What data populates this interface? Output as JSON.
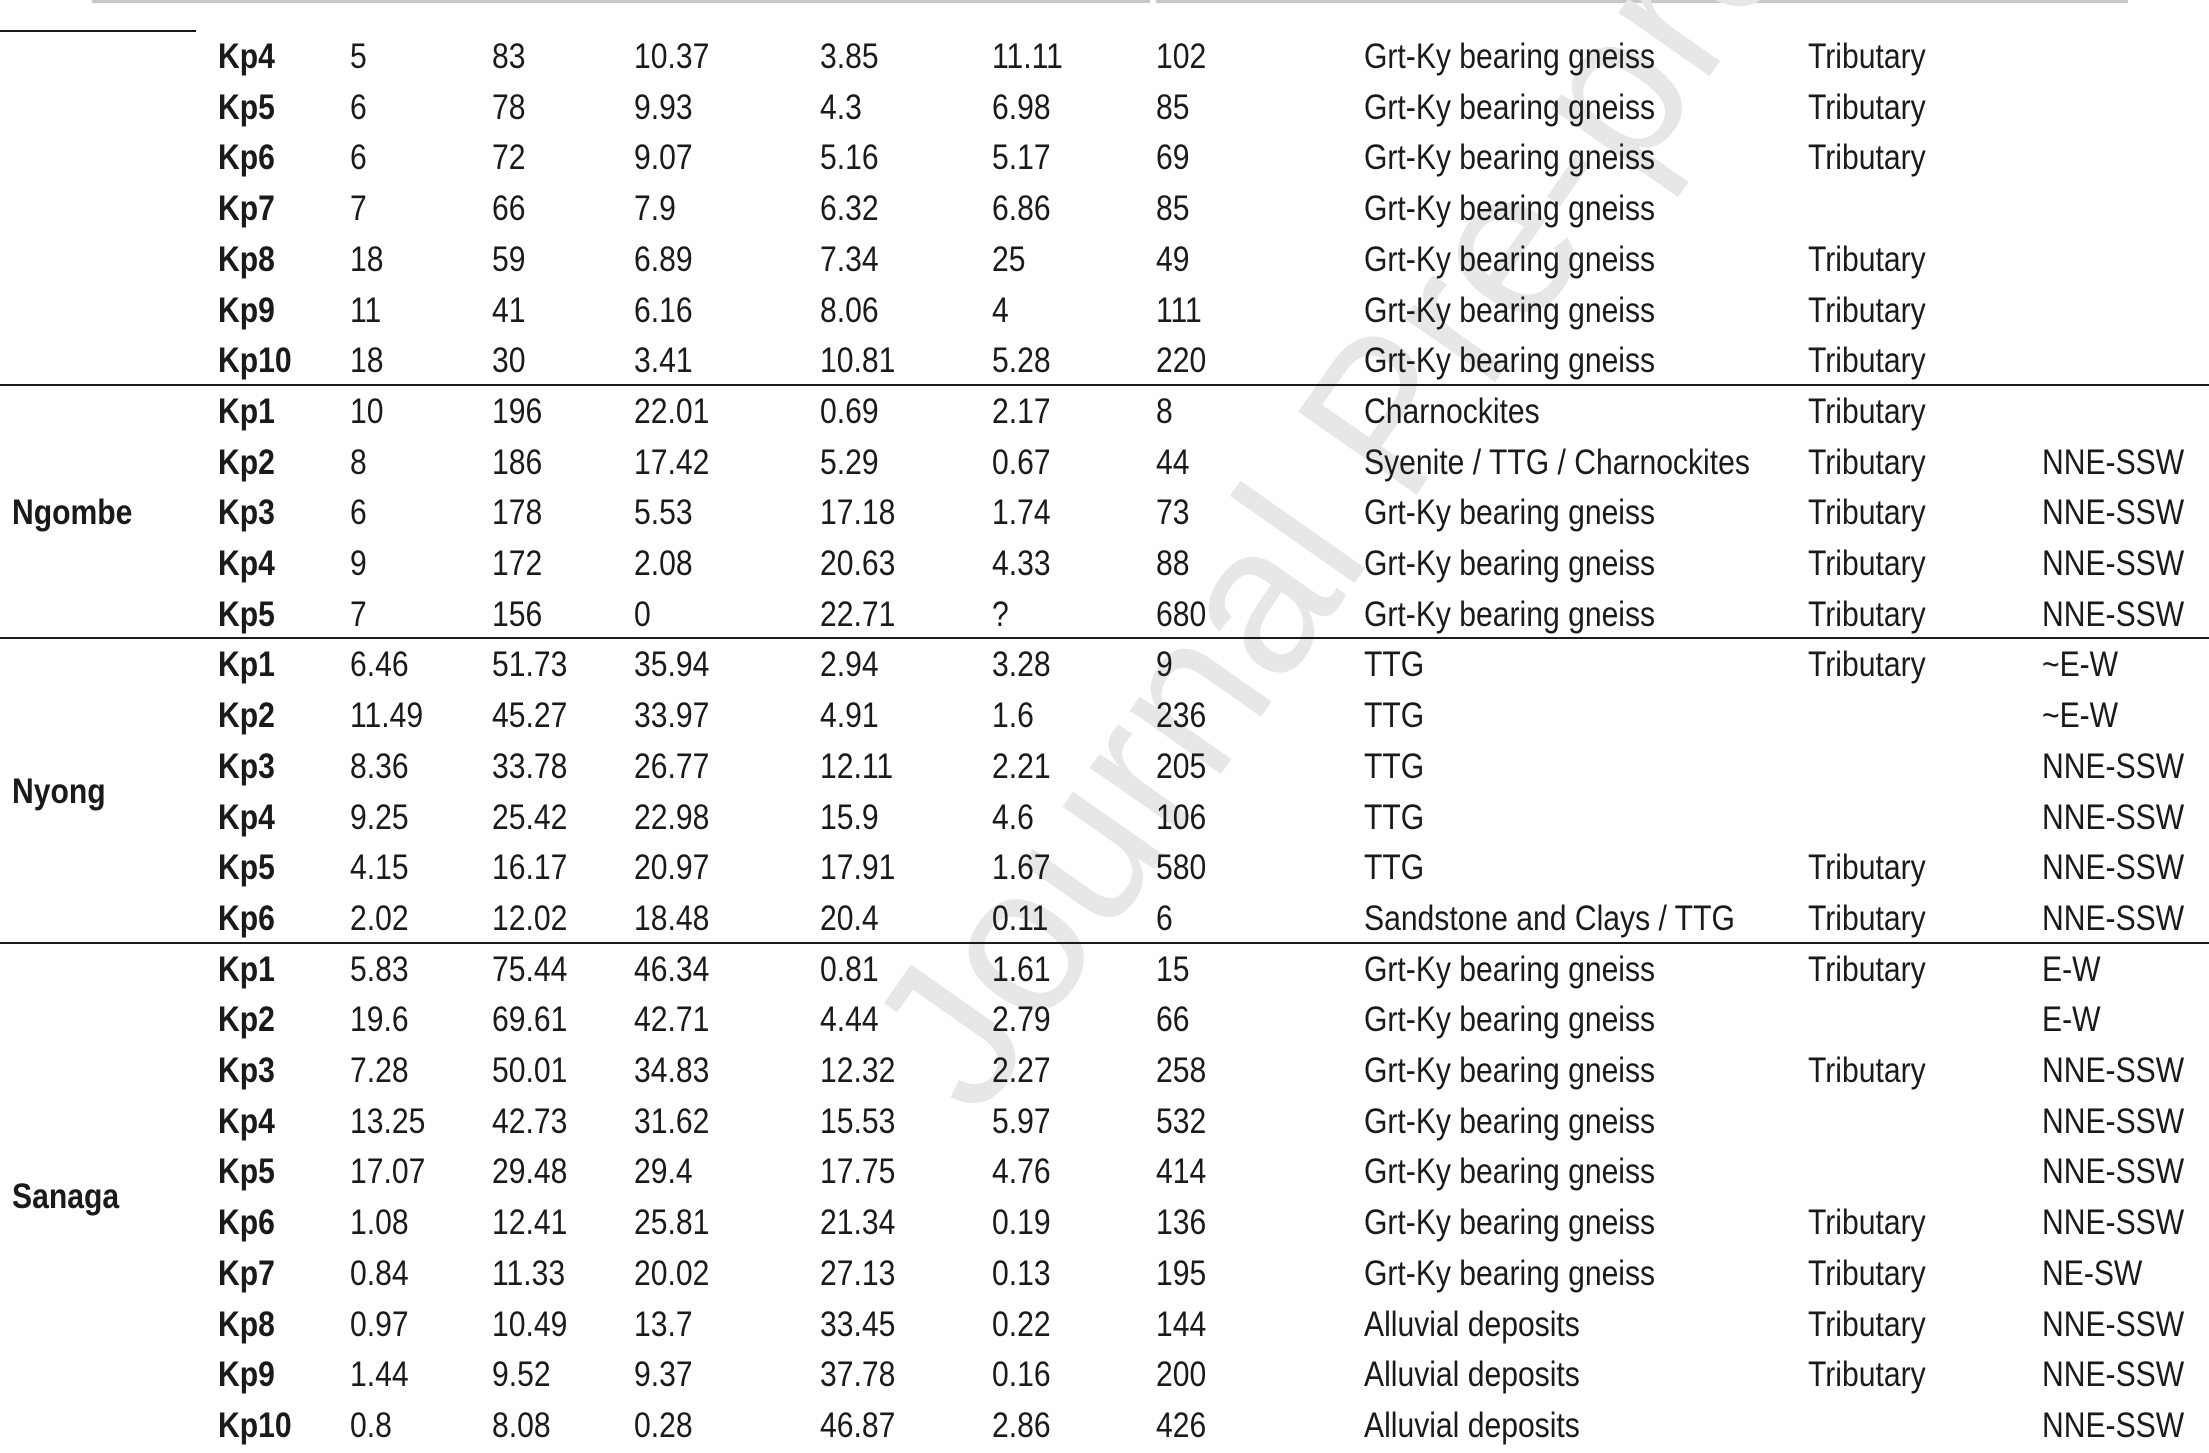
{
  "watermark": "Journal Pre-proof",
  "groups": [
    {
      "name": "",
      "rows": [
        {
          "id": "Kp4",
          "v1": "5",
          "v2": "83",
          "v3": "10.37",
          "v4": "3.85",
          "v5": "11.11",
          "v6": "102",
          "lithology": "Grt-Ky bearing gneiss",
          "type": "Tributary",
          "direction": ""
        },
        {
          "id": "Kp5",
          "v1": "6",
          "v2": "78",
          "v3": "9.93",
          "v4": "4.3",
          "v5": "6.98",
          "v6": "85",
          "lithology": "Grt-Ky bearing gneiss",
          "type": "Tributary",
          "direction": ""
        },
        {
          "id": "Kp6",
          "v1": "6",
          "v2": "72",
          "v3": "9.07",
          "v4": "5.16",
          "v5": "5.17",
          "v6": "69",
          "lithology": "Grt-Ky bearing gneiss",
          "type": "Tributary",
          "direction": ""
        },
        {
          "id": "Kp7",
          "v1": "7",
          "v2": "66",
          "v3": "7.9",
          "v4": "6.32",
          "v5": "6.86",
          "v6": "85",
          "lithology": "Grt-Ky bearing gneiss",
          "type": "",
          "direction": ""
        },
        {
          "id": "Kp8",
          "v1": "18",
          "v2": "59",
          "v3": "6.89",
          "v4": "7.34",
          "v5": "25",
          "v6": "49",
          "lithology": "Grt-Ky bearing gneiss",
          "type": "Tributary",
          "direction": ""
        },
        {
          "id": "Kp9",
          "v1": "11",
          "v2": "41",
          "v3": "6.16",
          "v4": "8.06",
          "v5": "4",
          "v6": "111",
          "lithology": "Grt-Ky bearing gneiss",
          "type": "Tributary",
          "direction": ""
        },
        {
          "id": "Kp10",
          "v1": "18",
          "v2": "30",
          "v3": "3.41",
          "v4": "10.81",
          "v5": "5.28",
          "v6": "220",
          "lithology": "Grt-Ky bearing gneiss",
          "type": "Tributary",
          "direction": ""
        }
      ]
    },
    {
      "name": "Ngombe",
      "rows": [
        {
          "id": "Kp1",
          "v1": "10",
          "v2": "196",
          "v3": "22.01",
          "v4": "0.69",
          "v5": "2.17",
          "v6": "8",
          "lithology": "Charnockites",
          "type": "Tributary",
          "direction": ""
        },
        {
          "id": "Kp2",
          "v1": "8",
          "v2": "186",
          "v3": "17.42",
          "v4": "5.29",
          "v5": "0.67",
          "v6": "44",
          "lithology": "Syenite / TTG / Charnockites",
          "type": "Tributary",
          "direction": "NNE-SSW"
        },
        {
          "id": "Kp3",
          "v1": "6",
          "v2": "178",
          "v3": "5.53",
          "v4": "17.18",
          "v5": "1.74",
          "v6": "73",
          "lithology": "Grt-Ky bearing gneiss",
          "type": "Tributary",
          "direction": "NNE-SSW"
        },
        {
          "id": "Kp4",
          "v1": "9",
          "v2": "172",
          "v3": "2.08",
          "v4": "20.63",
          "v5": "4.33",
          "v6": "88",
          "lithology": "Grt-Ky bearing gneiss",
          "type": "Tributary",
          "direction": "NNE-SSW"
        },
        {
          "id": "Kp5",
          "v1": "7",
          "v2": "156",
          "v3": "0",
          "v4": "22.71",
          "v5": "?",
          "v6": "680",
          "lithology": "Grt-Ky bearing gneiss",
          "type": "Tributary",
          "direction": "NNE-SSW"
        }
      ]
    },
    {
      "name": "Nyong",
      "rows": [
        {
          "id": "Kp1",
          "v1": "6.46",
          "v2": "51.73",
          "v3": "35.94",
          "v4": "2.94",
          "v5": "3.28",
          "v6": "9",
          "lithology": "TTG",
          "type": "Tributary",
          "direction": "~E-W"
        },
        {
          "id": "Kp2",
          "v1": "11.49",
          "v2": "45.27",
          "v3": "33.97",
          "v4": "4.91",
          "v5": "1.6",
          "v6": "236",
          "lithology": "TTG",
          "type": "",
          "direction": "~E-W"
        },
        {
          "id": "Kp3",
          "v1": "8.36",
          "v2": "33.78",
          "v3": "26.77",
          "v4": "12.11",
          "v5": "2.21",
          "v6": "205",
          "lithology": "TTG",
          "type": "",
          "direction": "NNE-SSW"
        },
        {
          "id": "Kp4",
          "v1": "9.25",
          "v2": "25.42",
          "v3": "22.98",
          "v4": "15.9",
          "v5": "4.6",
          "v6": "106",
          "lithology": "TTG",
          "type": "",
          "direction": "NNE-SSW"
        },
        {
          "id": "Kp5",
          "v1": "4.15",
          "v2": "16.17",
          "v3": "20.97",
          "v4": "17.91",
          "v5": "1.67",
          "v6": "580",
          "lithology": "TTG",
          "type": "Tributary",
          "direction": "NNE-SSW"
        },
        {
          "id": "Kp6",
          "v1": "2.02",
          "v2": "12.02",
          "v3": "18.48",
          "v4": "20.4",
          "v5": "0.11",
          "v6": "6",
          "lithology": "Sandstone and Clays / TTG",
          "type": "Tributary",
          "direction": "NNE-SSW"
        }
      ]
    },
    {
      "name": "Sanaga",
      "rows": [
        {
          "id": "Kp1",
          "v1": "5.83",
          "v2": "75.44",
          "v3": "46.34",
          "v4": "0.81",
          "v5": "1.61",
          "v6": "15",
          "lithology": "Grt-Ky bearing gneiss",
          "type": "Tributary",
          "direction": "E-W"
        },
        {
          "id": "Kp2",
          "v1": "19.6",
          "v2": "69.61",
          "v3": "42.71",
          "v4": "4.44",
          "v5": "2.79",
          "v6": "66",
          "lithology": "Grt-Ky bearing gneiss",
          "type": "",
          "direction": "E-W"
        },
        {
          "id": "Kp3",
          "v1": "7.28",
          "v2": "50.01",
          "v3": "34.83",
          "v4": "12.32",
          "v5": "2.27",
          "v6": "258",
          "lithology": "Grt-Ky bearing gneiss",
          "type": "Tributary",
          "direction": "NNE-SSW"
        },
        {
          "id": "Kp4",
          "v1": "13.25",
          "v2": "42.73",
          "v3": "31.62",
          "v4": "15.53",
          "v5": "5.97",
          "v6": "532",
          "lithology": "Grt-Ky bearing gneiss",
          "type": "",
          "direction": "NNE-SSW"
        },
        {
          "id": "Kp5",
          "v1": "17.07",
          "v2": "29.48",
          "v3": "29.4",
          "v4": "17.75",
          "v5": "4.76",
          "v6": "414",
          "lithology": "Grt-Ky bearing gneiss",
          "type": "",
          "direction": "NNE-SSW"
        },
        {
          "id": "Kp6",
          "v1": "1.08",
          "v2": "12.41",
          "v3": "25.81",
          "v4": "21.34",
          "v5": "0.19",
          "v6": "136",
          "lithology": "Grt-Ky bearing gneiss",
          "type": "Tributary",
          "direction": "NNE-SSW"
        },
        {
          "id": "Kp7",
          "v1": "0.84",
          "v2": "11.33",
          "v3": "20.02",
          "v4": "27.13",
          "v5": "0.13",
          "v6": "195",
          "lithology": "Grt-Ky bearing gneiss",
          "type": "Tributary",
          "direction": "NE-SW"
        },
        {
          "id": "Kp8",
          "v1": "0.97",
          "v2": "10.49",
          "v3": "13.7",
          "v4": "33.45",
          "v5": "0.22",
          "v6": "144",
          "lithology": "Alluvial deposits",
          "type": "Tributary",
          "direction": "NNE-SSW"
        },
        {
          "id": "Kp9",
          "v1": "1.44",
          "v2": "9.52",
          "v3": "9.37",
          "v4": "37.78",
          "v5": "0.16",
          "v6": "200",
          "lithology": "Alluvial deposits",
          "type": "Tributary",
          "direction": "NNE-SSW"
        },
        {
          "id": "Kp10",
          "v1": "0.8",
          "v2": "8.08",
          "v3": "0.28",
          "v4": "46.87",
          "v5": "2.86",
          "v6": "426",
          "lithology": "Alluvial deposits",
          "type": "",
          "direction": "NNE-SSW"
        }
      ]
    }
  ]
}
